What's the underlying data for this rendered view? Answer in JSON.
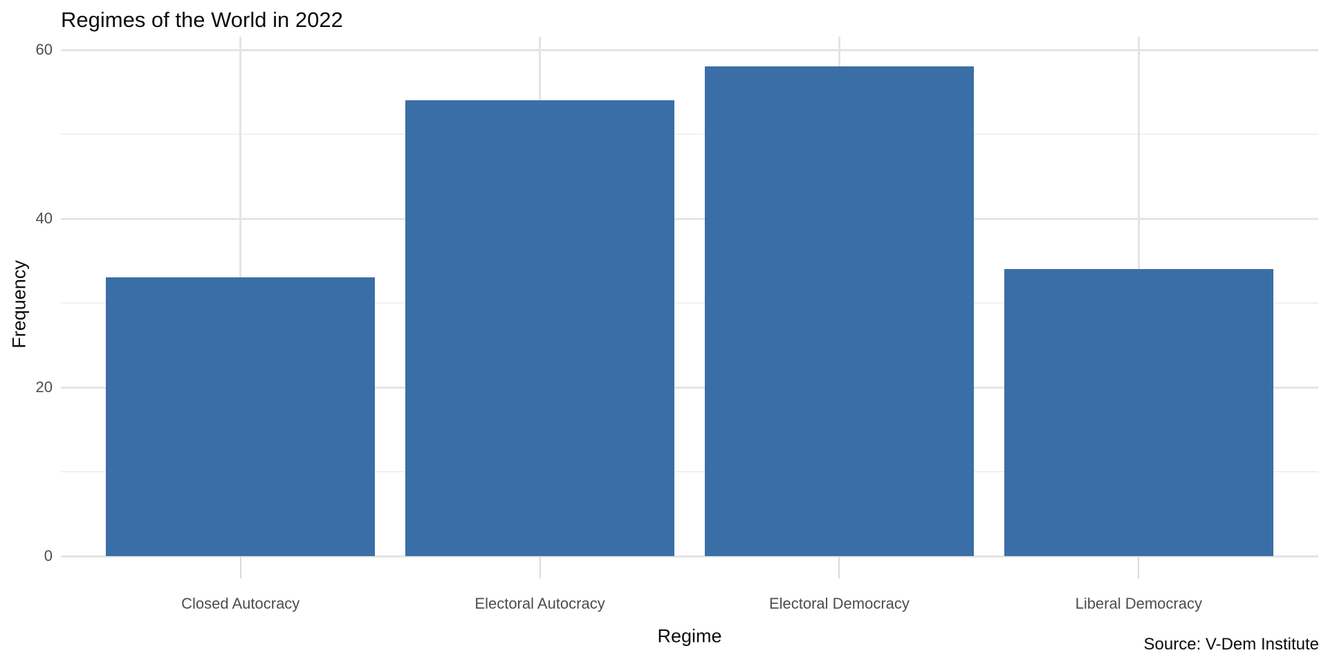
{
  "chart_data": {
    "type": "bar",
    "title": "Regimes of the World in 2022",
    "xlabel": "Regime",
    "ylabel": "Frequency",
    "categories": [
      "Closed Autocracy",
      "Electoral Autocracy",
      "Electoral Democracy",
      "Liberal Democracy"
    ],
    "values": [
      33,
      54,
      58,
      34
    ],
    "yticks_major": [
      0,
      20,
      40,
      60
    ],
    "yticks_minor": [
      10,
      30,
      50
    ],
    "ylim": [
      0,
      61.5
    ],
    "grid": "horizontal major and minor gridlines; vertical gridline at each category center; no axis lines",
    "legend": "none",
    "source_note": "Source: V-Dem Institute",
    "bar_color": "#3a6ea6",
    "grid_major_color": "#e4e4e4",
    "grid_minor_color": "#f0f0f0",
    "tick_mark_color": "#d9d9d9",
    "tick_text_color": "#4d4d4d",
    "text_color": "#0c0c0c",
    "background_color": "#ffffff"
  }
}
